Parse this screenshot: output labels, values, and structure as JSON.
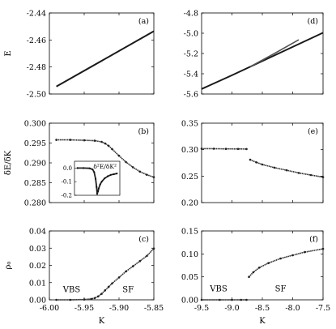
{
  "chart_data": [
    {
      "panel": "a",
      "label": "(a)",
      "type": "line",
      "xlim": [
        -6.0,
        -5.85
      ],
      "ylim": [
        -2.5,
        -2.44
      ],
      "xticks": [
        -6.0,
        -5.95,
        -5.9,
        -5.85
      ],
      "yticks": [
        -2.5,
        -2.48,
        -2.46,
        -2.44
      ],
      "ytick_labels": [
        "-2.50",
        "-2.48",
        "-2.46",
        "-2.44"
      ],
      "ylabel": "E",
      "xlabel": "",
      "series": [
        {
          "x": [
            -5.99,
            -5.85
          ],
          "y": [
            -2.4945,
            -2.4535
          ]
        }
      ]
    },
    {
      "panel": "b",
      "label": "(b)",
      "type": "scatter",
      "xlim": [
        -6.0,
        -5.85
      ],
      "ylim": [
        0.28,
        0.3
      ],
      "xticks": [
        -6.0,
        -5.95,
        -5.9,
        -5.85
      ],
      "yticks": [
        0.28,
        0.285,
        0.29,
        0.295,
        0.3
      ],
      "ytick_labels": [
        "0.280",
        "0.285",
        "0.290",
        "0.295",
        "0.300"
      ],
      "ylabel": "δE/δK",
      "xlabel": "",
      "series": [
        {
          "x": [
            -5.99,
            -5.97,
            -5.95,
            -5.935,
            -5.925,
            -5.92,
            -5.915,
            -5.91,
            -5.9,
            -5.89,
            -5.88,
            -5.87,
            -5.86,
            -5.85
          ],
          "y": [
            0.2958,
            0.2958,
            0.2957,
            0.2956,
            0.2953,
            0.2949,
            0.2943,
            0.2935,
            0.2918,
            0.2902,
            0.2889,
            0.2878,
            0.287,
            0.2864
          ]
        }
      ],
      "inset": {
        "title": "δ²E/δK²",
        "xlim": [
          -6.0,
          -5.85
        ],
        "ylim": [
          -0.2,
          0.05
        ],
        "yticks": [
          0.0,
          -0.1,
          -0.2
        ],
        "ytick_labels": [
          "0.0",
          "-0.1",
          "-0.2"
        ],
        "series": [
          {
            "x": [
              -5.99,
              -5.97,
              -5.95,
              -5.94,
              -5.935,
              -5.93,
              -5.927,
              -5.925,
              -5.922,
              -5.92,
              -5.915,
              -5.91,
              -5.9,
              -5.89,
              -5.88,
              -5.87,
              -5.86
            ],
            "y": [
              0.0,
              0.0,
              -0.002,
              -0.01,
              -0.03,
              -0.08,
              -0.14,
              -0.19,
              -0.17,
              -0.15,
              -0.12,
              -0.1,
              -0.075,
              -0.06,
              -0.05,
              -0.045,
              -0.04
            ]
          }
        ]
      }
    },
    {
      "panel": "c",
      "label": "(c)",
      "type": "scatter",
      "xlim": [
        -6.0,
        -5.85
      ],
      "ylim": [
        0.0,
        0.04
      ],
      "xticks": [
        -6.0,
        -5.95,
        -5.9,
        -5.85
      ],
      "xtick_labels": [
        "-6.00",
        "-5.95",
        "-5.90",
        "-5.85"
      ],
      "yticks": [
        0.0,
        0.01,
        0.02,
        0.03,
        0.04
      ],
      "ytick_labels": [
        "0.00",
        "0.01",
        "0.02",
        "0.03",
        "0.04"
      ],
      "ylabel": "ρ₀",
      "xlabel": "K",
      "annotations": [
        {
          "text": "VBS",
          "x": -5.968,
          "y": 0.0045
        },
        {
          "text": "SF",
          "x": -5.887,
          "y": 0.0045
        }
      ],
      "series": [
        {
          "x": [
            -5.99,
            -5.97,
            -5.95,
            -5.94,
            -5.935,
            -5.93,
            -5.925,
            -5.92,
            -5.915,
            -5.91,
            -5.9,
            -5.89,
            -5.88,
            -5.87,
            -5.86,
            -5.85
          ],
          "y": [
            0.0,
            0.0,
            0.0002,
            0.0005,
            0.001,
            0.002,
            0.0035,
            0.0055,
            0.0075,
            0.0095,
            0.013,
            0.0165,
            0.0195,
            0.0225,
            0.0255,
            0.0298
          ]
        }
      ]
    },
    {
      "panel": "d",
      "label": "(d)",
      "type": "line",
      "xlim": [
        -9.5,
        -7.5
      ],
      "ylim": [
        -5.6,
        -4.8
      ],
      "xticks": [
        -9.5,
        -9.0,
        -8.5,
        -8.0,
        -7.5
      ],
      "yticks": [
        -5.6,
        -5.4,
        -5.2,
        -5.0,
        -4.8
      ],
      "ytick_labels": [
        "-5.6",
        "-5.4",
        "-5.2",
        "-5.0",
        "-4.8"
      ],
      "ylabel": "",
      "xlabel": "",
      "series": [
        {
          "x": [
            -9.5,
            -9.0,
            -8.5,
            -8.0,
            -7.5
          ],
          "y": [
            -5.55,
            -5.415,
            -5.275,
            -5.135,
            -4.995
          ]
        },
        {
          "x": [
            -8.7,
            -8.3,
            -7.9
          ],
          "y": [
            -5.33,
            -5.2,
            -5.065
          ]
        }
      ]
    },
    {
      "panel": "e",
      "label": "(e)",
      "type": "scatter",
      "xlim": [
        -9.5,
        -7.5
      ],
      "ylim": [
        0.2,
        0.35
      ],
      "xticks": [
        -9.5,
        -9.0,
        -8.5,
        -8.0,
        -7.5
      ],
      "yticks": [
        0.2,
        0.25,
        0.3,
        0.35
      ],
      "ytick_labels": [
        "0.20",
        "0.25",
        "0.30",
        "0.35"
      ],
      "ylabel": "",
      "xlabel": "",
      "series": [
        {
          "x": [
            -9.5,
            -9.3,
            -9.1,
            -8.9,
            -8.76
          ],
          "y": [
            0.302,
            0.3018,
            0.3015,
            0.3013,
            0.3012
          ]
        },
        {
          "x": [
            -8.7,
            -8.6,
            -8.5,
            -8.3,
            -8.1,
            -7.9,
            -7.7,
            -7.5
          ],
          "y": [
            0.281,
            0.276,
            0.272,
            0.266,
            0.261,
            0.256,
            0.252,
            0.248
          ]
        }
      ]
    },
    {
      "panel": "f",
      "label": "(f)",
      "type": "scatter",
      "xlim": [
        -9.5,
        -7.5
      ],
      "ylim": [
        0.0,
        0.15
      ],
      "xticks": [
        -9.5,
        -9.0,
        -8.5,
        -8.0,
        -7.5
      ],
      "xtick_labels": [
        "-9.5",
        "-9.0",
        "-8.5",
        "-8.0",
        "-7.5"
      ],
      "yticks": [
        0.0,
        0.05,
        0.1,
        0.15
      ],
      "ytick_labels": [
        "0.00",
        "0.05",
        "0.10",
        "0.15"
      ],
      "ylabel": "",
      "xlabel": "K",
      "annotations": [
        {
          "text": "VBS",
          "x": -9.22,
          "y": 0.0185
        },
        {
          "text": "SF",
          "x": -8.2,
          "y": 0.0185
        }
      ],
      "series": [
        {
          "x": [
            -9.5,
            -9.2,
            -9.0,
            -8.85,
            -8.76
          ],
          "y": [
            0.0,
            0.0,
            0.0,
            0.0,
            0.0
          ]
        },
        {
          "x": [
            -8.72,
            -8.65,
            -8.55,
            -8.4,
            -8.2,
            -8.0,
            -7.8,
            -7.5
          ],
          "y": [
            0.05,
            0.06,
            0.07,
            0.08,
            0.09,
            0.097,
            0.104,
            0.111
          ]
        }
      ]
    }
  ]
}
